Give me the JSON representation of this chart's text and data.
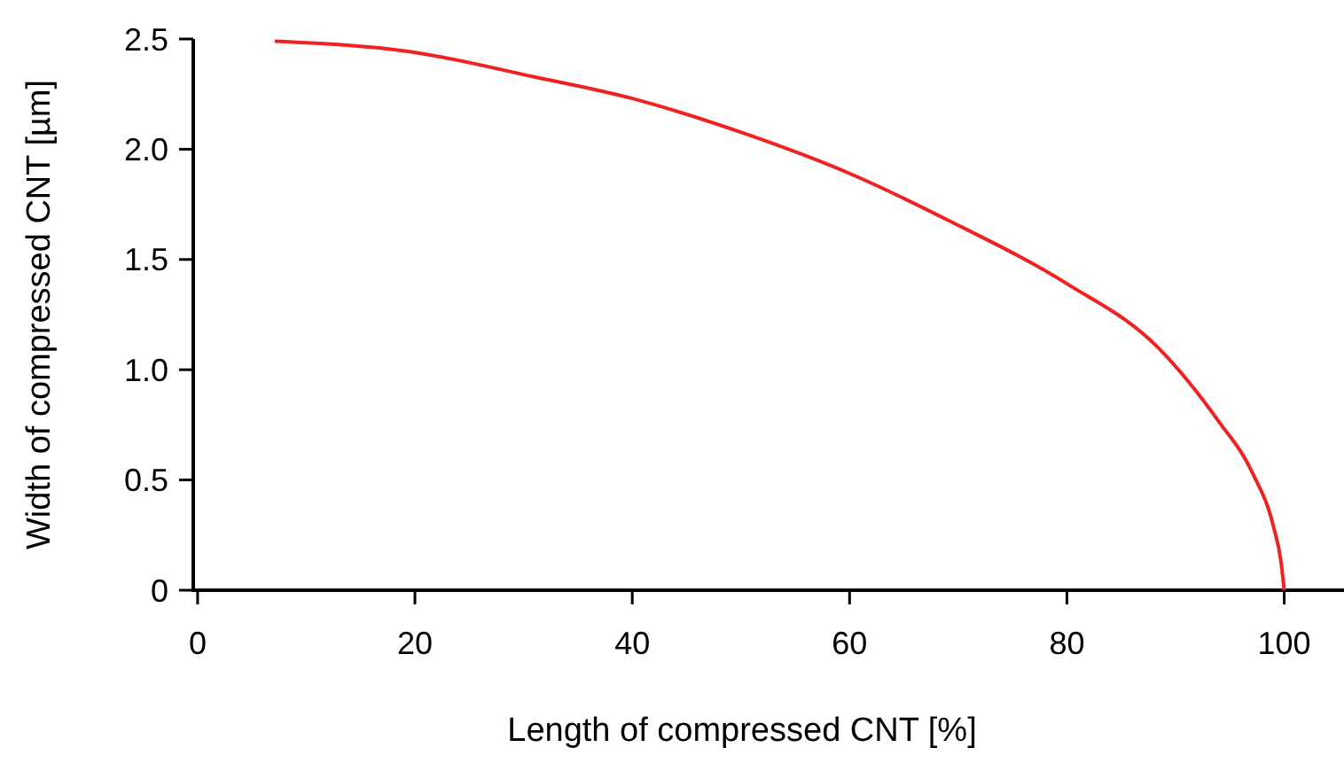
{
  "chart_data": {
    "type": "line",
    "xlabel": "Length of compressed CNT [%]",
    "ylabel": "Width of  compressed CNT [µm]",
    "x": [
      7.1,
      19.9,
      30.8,
      40.0,
      50.4,
      60.0,
      69.4,
      80.0,
      88.4,
      93.9,
      97.1,
      99.0,
      99.7,
      100
    ],
    "series": [
      {
        "color": "#ee2222",
        "values": [
          2.49,
          2.44,
          2.33,
          2.23,
          2.07,
          1.89,
          1.67,
          1.39,
          1.1,
          0.77,
          0.53,
          0.29,
          0.13,
          0
        ]
      }
    ],
    "xlim": [
      -0.4,
      105.5
    ],
    "ylim": [
      0,
      2.5
    ],
    "xticks": [
      0,
      20,
      40,
      60,
      80,
      100
    ],
    "yticks": [
      0,
      {
        "value": 0.5,
        "label": "0.5"
      },
      {
        "value": 1,
        "label": "1.0"
      },
      {
        "value": 1.5,
        "label": "1.5"
      },
      {
        "value": 2,
        "label": "2.0"
      },
      {
        "value": 2.5,
        "label": "2.5"
      }
    ],
    "grid": false,
    "marker": "none",
    "line_style": "solid"
  }
}
